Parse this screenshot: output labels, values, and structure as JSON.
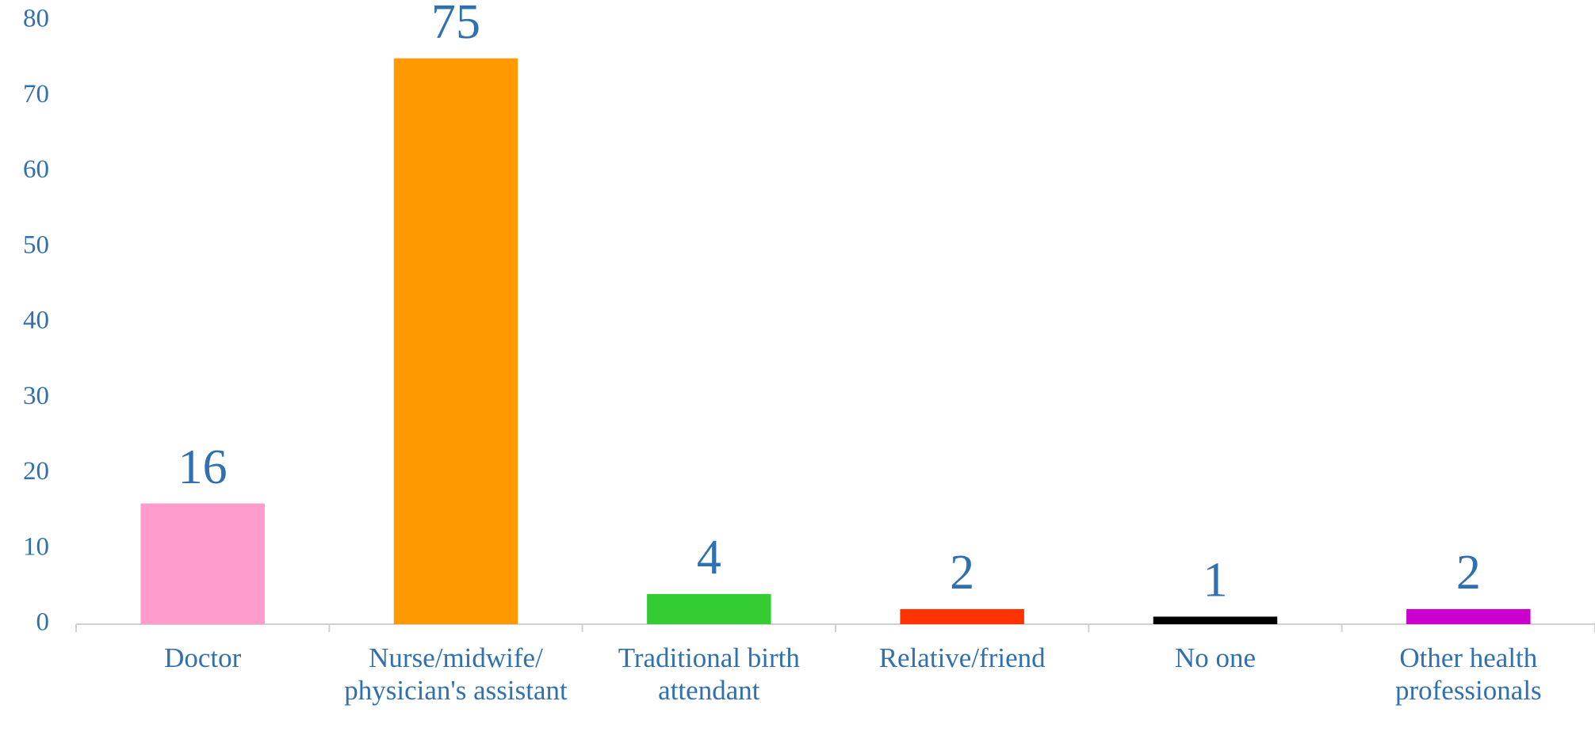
{
  "chart_data": {
    "type": "bar",
    "categories": [
      "Doctor",
      "Nurse/midwife/ physician's assistant",
      "Traditional birth attendant",
      "Relative/friend",
      "No one",
      "Other health professionals"
    ],
    "values": [
      16,
      75,
      4,
      2,
      1,
      2
    ],
    "colors": [
      "#ff9ccd",
      "#ff9900",
      "#33cc33",
      "#ff3300",
      "#000000",
      "#cc00cc"
    ],
    "ylim": [
      0,
      80
    ],
    "yticks": [
      0,
      10,
      20,
      30,
      40,
      50,
      60,
      70,
      80
    ],
    "grid": false
  }
}
